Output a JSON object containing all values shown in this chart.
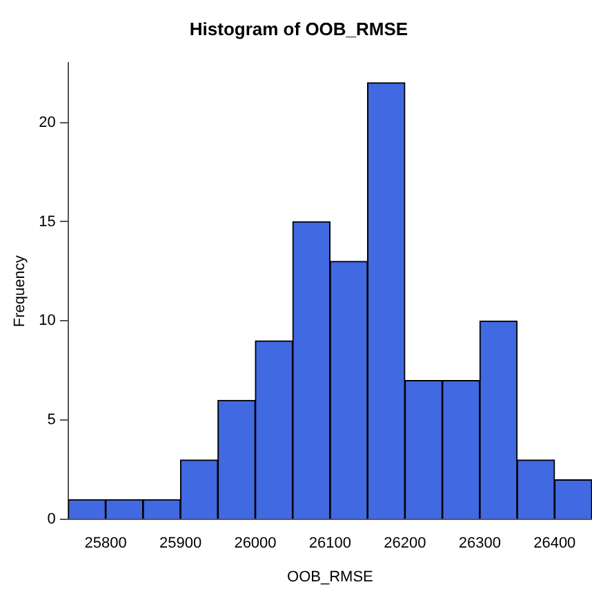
{
  "chart_data": {
    "type": "histogram",
    "title": "Histogram of OOB_RMSE",
    "xlabel": "OOB_RMSE",
    "ylabel": "Frequency",
    "bins": [
      25750,
      25800,
      25850,
      25900,
      25950,
      26000,
      26050,
      26100,
      26150,
      26200,
      26250,
      26300,
      26350,
      26400,
      26450
    ],
    "values": [
      1,
      1,
      1,
      3,
      6,
      9,
      15,
      13,
      22,
      7,
      7,
      10,
      3,
      2
    ],
    "color": "#4169e1",
    "xlim": [
      25750,
      26450
    ],
    "xticks": [
      25800,
      25900,
      26000,
      26100,
      26200,
      26300,
      26400
    ],
    "ylim": [
      0,
      23
    ],
    "yticks": [
      0,
      5,
      10,
      15,
      20
    ],
    "grid": false,
    "legend": false
  }
}
